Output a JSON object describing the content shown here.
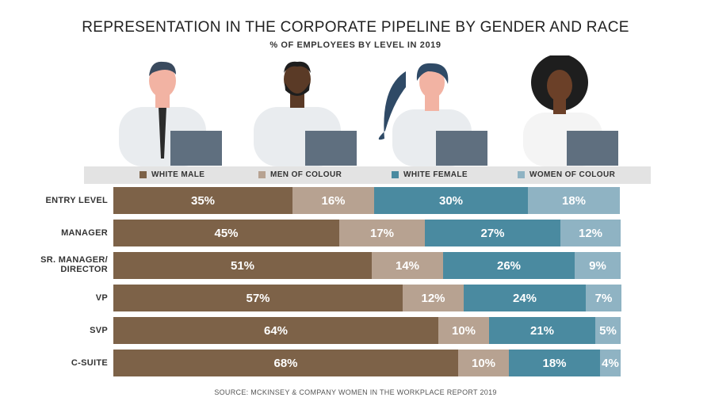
{
  "title": "REPRESENTATION IN THE CORPORATE PIPELINE BY GENDER AND RACE",
  "subtitle": "% OF EMPLOYEES BY LEVEL IN 2019",
  "source": "SOURCE: MCKINSEY & COMPANY WOMEN IN THE WORKPLACE REPORT 2019",
  "colors": {
    "white_male": "#7d6248",
    "men_of_colour": "#b7a291",
    "white_female": "#4a8aa0",
    "women_of_colour": "#8fb3c3"
  },
  "legend": [
    {
      "label": "WHITE MALE",
      "color": "#7d6248"
    },
    {
      "label": "MEN OF COLOUR",
      "color": "#b7a291"
    },
    {
      "label": "WHITE FEMALE",
      "color": "#4a8aa0"
    },
    {
      "label": "WOMEN OF COLOUR",
      "color": "#8fb3c3"
    }
  ],
  "chart_data": {
    "type": "bar",
    "orientation": "horizontal",
    "stacked": true,
    "categories": [
      "ENTRY LEVEL",
      "MANAGER",
      "SR. MANAGER/ DIRECTOR",
      "VP",
      "SVP",
      "C-SUITE"
    ],
    "series": [
      {
        "name": "WHITE MALE",
        "values": [
          35,
          45,
          51,
          57,
          64,
          68
        ]
      },
      {
        "name": "MEN OF COLOUR",
        "values": [
          16,
          17,
          14,
          12,
          10,
          10
        ]
      },
      {
        "name": "WHITE FEMALE",
        "values": [
          30,
          27,
          26,
          24,
          21,
          18
        ]
      },
      {
        "name": "WOMEN OF COLOUR",
        "values": [
          18,
          12,
          9,
          7,
          5,
          4
        ]
      }
    ],
    "value_suffix": "%",
    "legend_position": "top",
    "grid": false
  }
}
